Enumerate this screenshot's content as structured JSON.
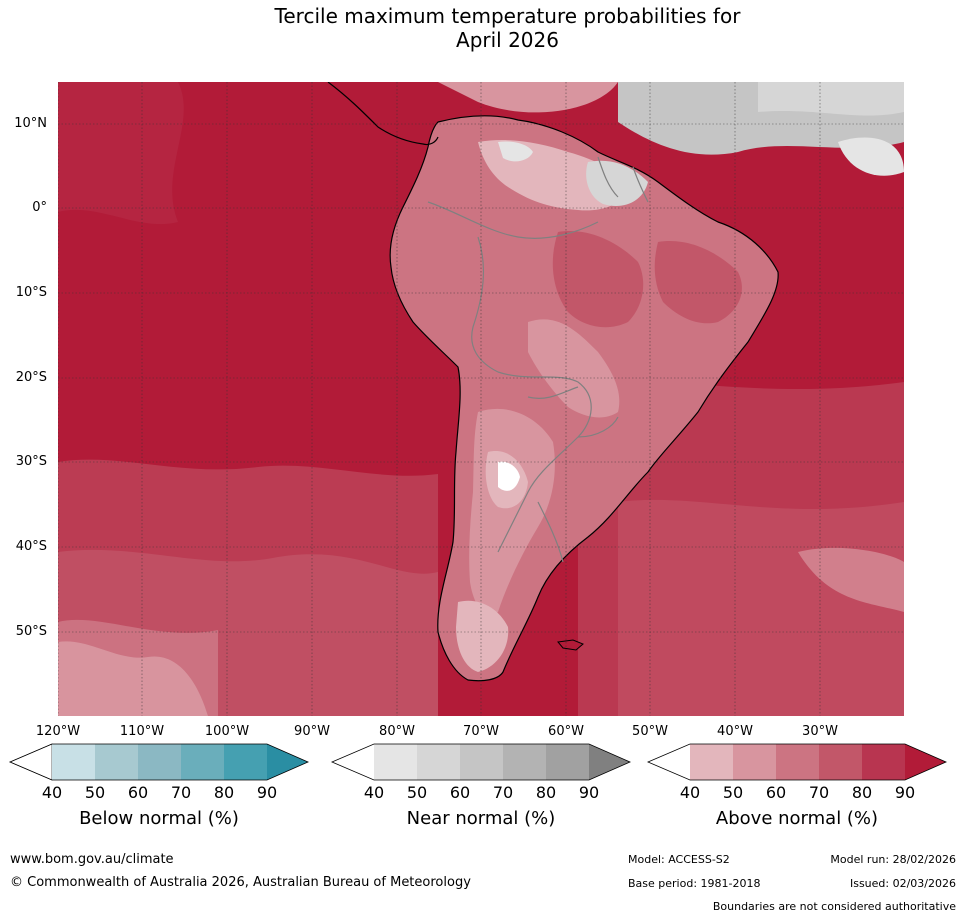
{
  "title_line1": "Tercile maximum temperature probabilities for",
  "title_line2": "April 2026",
  "map": {
    "lat_labels": [
      "10°N",
      "0°",
      "10°S",
      "20°S",
      "30°S",
      "40°S",
      "50°S"
    ],
    "lon_labels": [
      "120°W",
      "110°W",
      "100°W",
      "90°W",
      "80°W",
      "70°W",
      "60°W",
      "50°W",
      "40°W",
      "30°W"
    ],
    "ocean_color": "#b21b38"
  },
  "colorbars": [
    {
      "title": "Below normal (%)",
      "ticks": [
        "40",
        "50",
        "60",
        "70",
        "80",
        "90"
      ],
      "colors": [
        "#ffffff",
        "#c8e0e6",
        "#a7c9d0",
        "#8bb8c3",
        "#6aaebb",
        "#45a0b1",
        "#2a8ea3"
      ]
    },
    {
      "title": "Near normal (%)",
      "ticks": [
        "40",
        "50",
        "60",
        "70",
        "80",
        "90"
      ],
      "colors": [
        "#ffffff",
        "#e5e5e5",
        "#d6d6d6",
        "#c5c5c5",
        "#b3b3b3",
        "#a1a1a1",
        "#808080"
      ]
    },
    {
      "title": "Above normal (%)",
      "ticks": [
        "40",
        "50",
        "60",
        "70",
        "80",
        "90"
      ],
      "colors": [
        "#ffffff",
        "#e3b6bc",
        "#d8959f",
        "#cc7482",
        "#c25769",
        "#b83550",
        "#b21b38"
      ]
    }
  ],
  "footer": {
    "url": "www.bom.gov.au/climate",
    "copyright": "© Commonwealth of Australia 2026, Australian Bureau of Meteorology",
    "model": "Model: ACCESS-S2",
    "model_run": "Model run: 28/02/2026",
    "base_period": "Base period: 1981-2018",
    "issued": "Issued: 02/03/2026",
    "disclaimer": "Boundaries are not considered authoritative"
  }
}
